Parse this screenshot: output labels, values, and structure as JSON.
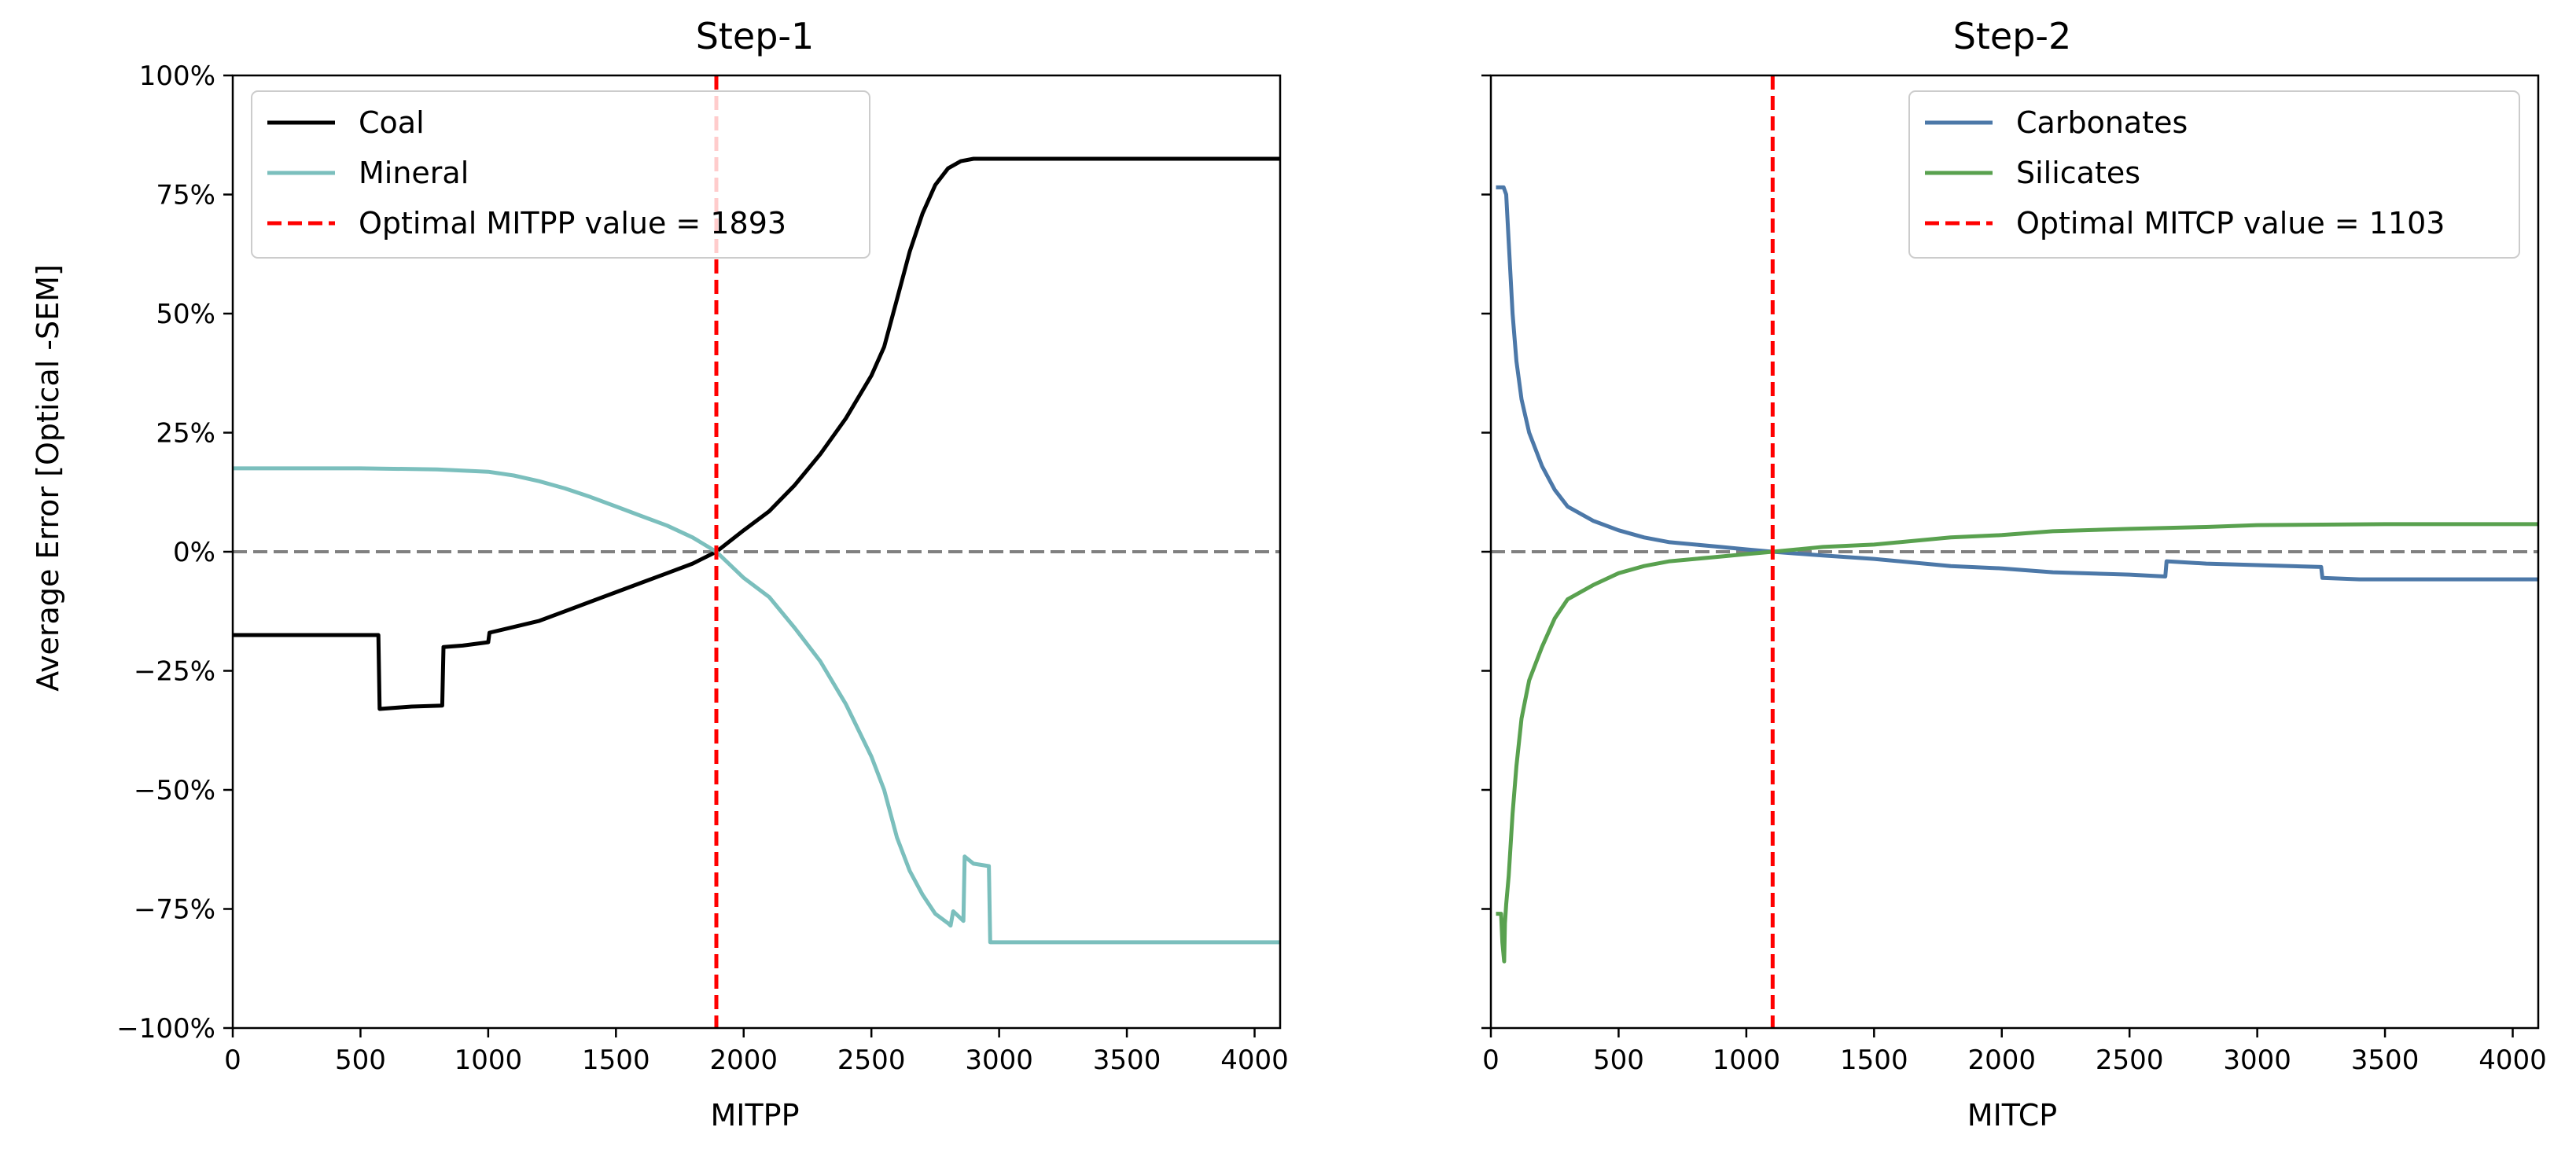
{
  "chart_data": [
    {
      "type": "line",
      "title": "Step-1",
      "xlabel": "MITPP",
      "ylabel": "Average Error [Optical -SEM]",
      "xlim": [
        0,
        4100
      ],
      "ylim": [
        -100,
        100
      ],
      "xticks": [
        0,
        500,
        1000,
        1500,
        2000,
        2500,
        3000,
        3500,
        4000
      ],
      "xtick_labels": [
        "0",
        "500",
        "1000",
        "1500",
        "2000",
        "2500",
        "3000",
        "3500",
        "4000"
      ],
      "yticks": [
        -100,
        -75,
        -50,
        -25,
        0,
        25,
        50,
        75,
        100
      ],
      "ytick_labels": [
        "−100%",
        "−75%",
        "−50%",
        "−25%",
        "0%",
        "25%",
        "50%",
        "75%",
        "100%"
      ],
      "legend_position": "top-left",
      "zero_line": {
        "y": 0,
        "color": "#808080"
      },
      "optimal": {
        "label": "Optimal MITPP value = 1893",
        "x": 1893,
        "color": "#ff0000"
      },
      "series": [
        {
          "name": "Coal",
          "color": "#000000",
          "points": [
            [
              0,
              -17.5
            ],
            [
              100,
              -17.5
            ],
            [
              200,
              -17.5
            ],
            [
              300,
              -17.5
            ],
            [
              400,
              -17.5
            ],
            [
              500,
              -17.5
            ],
            [
              570,
              -17.5
            ],
            [
              575,
              -33
            ],
            [
              700,
              -32.5
            ],
            [
              820,
              -32.3
            ],
            [
              825,
              -20
            ],
            [
              900,
              -19.7
            ],
            [
              1000,
              -19
            ],
            [
              1005,
              -17
            ],
            [
              1100,
              -15.8
            ],
            [
              1200,
              -14.5
            ],
            [
              1300,
              -12.5
            ],
            [
              1400,
              -10.5
            ],
            [
              1500,
              -8.5
            ],
            [
              1600,
              -6.5
            ],
            [
              1700,
              -4.5
            ],
            [
              1800,
              -2.5
            ],
            [
              1893,
              0
            ],
            [
              2000,
              4.5
            ],
            [
              2100,
              8.5
            ],
            [
              2200,
              14
            ],
            [
              2300,
              20.5
            ],
            [
              2400,
              28
            ],
            [
              2500,
              37
            ],
            [
              2550,
              43
            ],
            [
              2600,
              53
            ],
            [
              2650,
              63
            ],
            [
              2700,
              71
            ],
            [
              2750,
              77
            ],
            [
              2800,
              80.5
            ],
            [
              2850,
              82
            ],
            [
              2900,
              82.5
            ],
            [
              3000,
              82.5
            ],
            [
              3500,
              82.5
            ],
            [
              4100,
              82.5
            ]
          ]
        },
        {
          "name": "Mineral",
          "color": "#7bbfbd",
          "points": [
            [
              0,
              17.5
            ],
            [
              500,
              17.5
            ],
            [
              800,
              17.3
            ],
            [
              1000,
              16.8
            ],
            [
              1100,
              16
            ],
            [
              1200,
              14.8
            ],
            [
              1300,
              13.3
            ],
            [
              1400,
              11.5
            ],
            [
              1500,
              9.5
            ],
            [
              1600,
              7.5
            ],
            [
              1700,
              5.5
            ],
            [
              1800,
              3
            ],
            [
              1893,
              0
            ],
            [
              2000,
              -5.5
            ],
            [
              2100,
              -9.5
            ],
            [
              2200,
              -16
            ],
            [
              2300,
              -23
            ],
            [
              2400,
              -32
            ],
            [
              2500,
              -43
            ],
            [
              2550,
              -50
            ],
            [
              2600,
              -60
            ],
            [
              2650,
              -67
            ],
            [
              2700,
              -72
            ],
            [
              2750,
              -76
            ],
            [
              2800,
              -78
            ],
            [
              2810,
              -78.5
            ],
            [
              2820,
              -75.5
            ],
            [
              2840,
              -76.5
            ],
            [
              2860,
              -77.5
            ],
            [
              2865,
              -64
            ],
            [
              2900,
              -65.5
            ],
            [
              2960,
              -66
            ],
            [
              2965,
              -82
            ],
            [
              3000,
              -82
            ],
            [
              3500,
              -82
            ],
            [
              4100,
              -82
            ]
          ]
        }
      ]
    },
    {
      "type": "line",
      "title": "Step-2",
      "xlabel": "MITCP",
      "ylabel": "",
      "xlim": [
        0,
        4100
      ],
      "ylim": [
        -100,
        100
      ],
      "xticks": [
        0,
        500,
        1000,
        1500,
        2000,
        2500,
        3000,
        3500,
        4000
      ],
      "xtick_labels": [
        "0",
        "500",
        "1000",
        "1500",
        "2000",
        "2500",
        "3000",
        "3500",
        "4000"
      ],
      "yticks": [
        -100,
        -75,
        -50,
        -25,
        0,
        25,
        50,
        75,
        100
      ],
      "legend_position": "top-right",
      "zero_line": {
        "y": 0,
        "color": "#808080"
      },
      "optimal": {
        "label": "Optimal MITCP value = 1103",
        "x": 1103,
        "color": "#ff0000"
      },
      "series": [
        {
          "name": "Carbonates",
          "color": "#4c78a8",
          "points": [
            [
              20,
              76.5
            ],
            [
              50,
              76.5
            ],
            [
              60,
              75
            ],
            [
              70,
              65
            ],
            [
              85,
              50
            ],
            [
              100,
              40
            ],
            [
              120,
              32
            ],
            [
              150,
              25
            ],
            [
              200,
              18
            ],
            [
              250,
              13
            ],
            [
              300,
              9.5
            ],
            [
              400,
              6.5
            ],
            [
              500,
              4.5
            ],
            [
              600,
              3
            ],
            [
              700,
              2
            ],
            [
              800,
              1.5
            ],
            [
              900,
              1
            ],
            [
              1000,
              0.5
            ],
            [
              1103,
              0
            ],
            [
              1300,
              -0.8
            ],
            [
              1500,
              -1.5
            ],
            [
              1800,
              -3
            ],
            [
              2000,
              -3.5
            ],
            [
              2200,
              -4.3
            ],
            [
              2500,
              -4.8
            ],
            [
              2640,
              -5.2
            ],
            [
              2645,
              -2
            ],
            [
              2800,
              -2.5
            ],
            [
              3000,
              -2.8
            ],
            [
              3250,
              -3.2
            ],
            [
              3255,
              -5.5
            ],
            [
              3400,
              -5.8
            ],
            [
              3600,
              -5.8
            ],
            [
              4100,
              -5.8
            ]
          ]
        },
        {
          "name": "Silicates",
          "color": "#59a14f",
          "points": [
            [
              20,
              -76
            ],
            [
              40,
              -76
            ],
            [
              45,
              -82
            ],
            [
              52,
              -86
            ],
            [
              55,
              -78
            ],
            [
              60,
              -74
            ],
            [
              70,
              -68
            ],
            [
              85,
              -55
            ],
            [
              100,
              -45
            ],
            [
              120,
              -35
            ],
            [
              150,
              -27
            ],
            [
              200,
              -20
            ],
            [
              250,
              -14
            ],
            [
              300,
              -10
            ],
            [
              400,
              -7
            ],
            [
              500,
              -4.5
            ],
            [
              600,
              -3
            ],
            [
              700,
              -2
            ],
            [
              800,
              -1.5
            ],
            [
              900,
              -1
            ],
            [
              1000,
              -0.5
            ],
            [
              1103,
              0
            ],
            [
              1300,
              1
            ],
            [
              1500,
              1.5
            ],
            [
              1800,
              3
            ],
            [
              2000,
              3.5
            ],
            [
              2200,
              4.3
            ],
            [
              2500,
              4.8
            ],
            [
              2800,
              5.2
            ],
            [
              3000,
              5.6
            ],
            [
              3500,
              5.8
            ],
            [
              4100,
              5.8
            ]
          ]
        }
      ]
    }
  ]
}
